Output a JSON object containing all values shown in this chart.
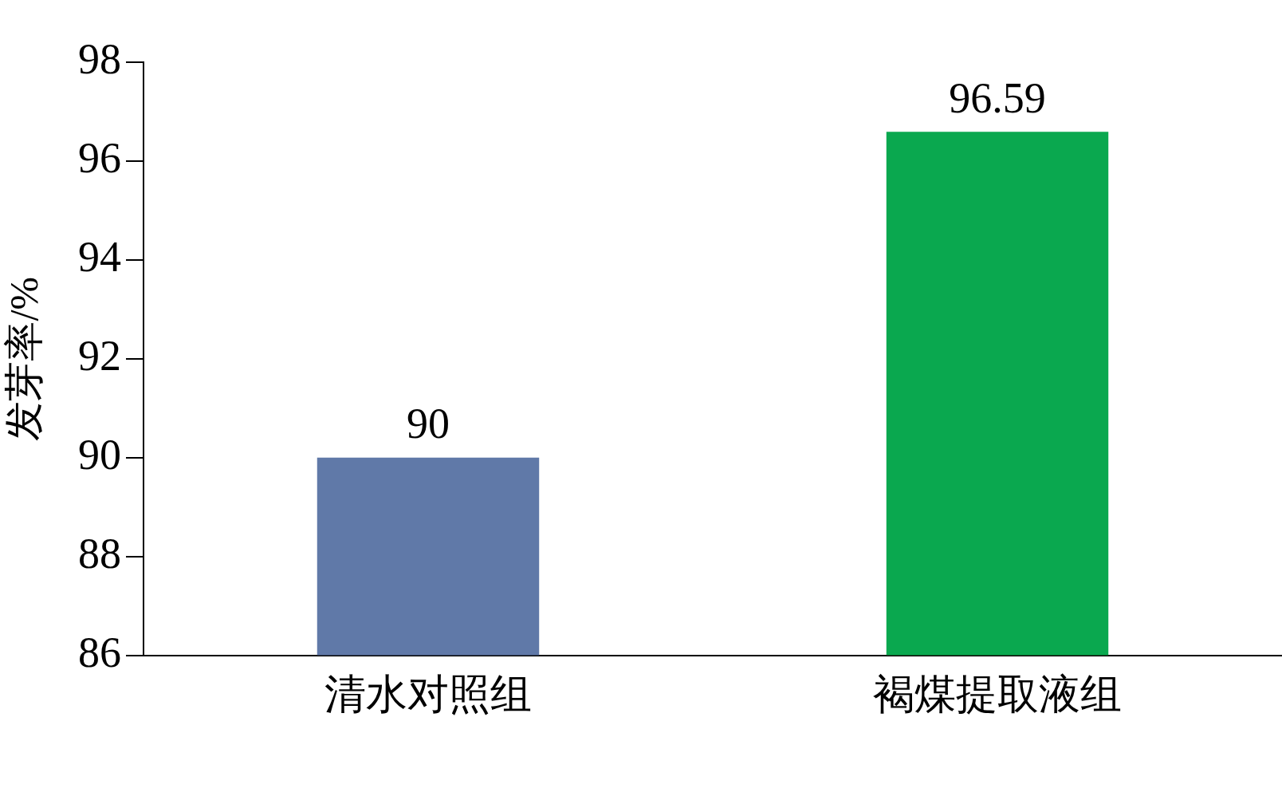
{
  "chart_data": {
    "type": "bar",
    "ylabel": "发芽率/%",
    "categories": [
      "清水对照组",
      "褐煤提取液组"
    ],
    "values": [
      90,
      96.59
    ],
    "colors": [
      "#6079a8",
      "#0aa84f"
    ],
    "ylim": [
      86,
      98
    ],
    "yticks": [
      86,
      88,
      90,
      92,
      94,
      96,
      98
    ],
    "grid": false,
    "legend": false,
    "data_labels": true
  }
}
